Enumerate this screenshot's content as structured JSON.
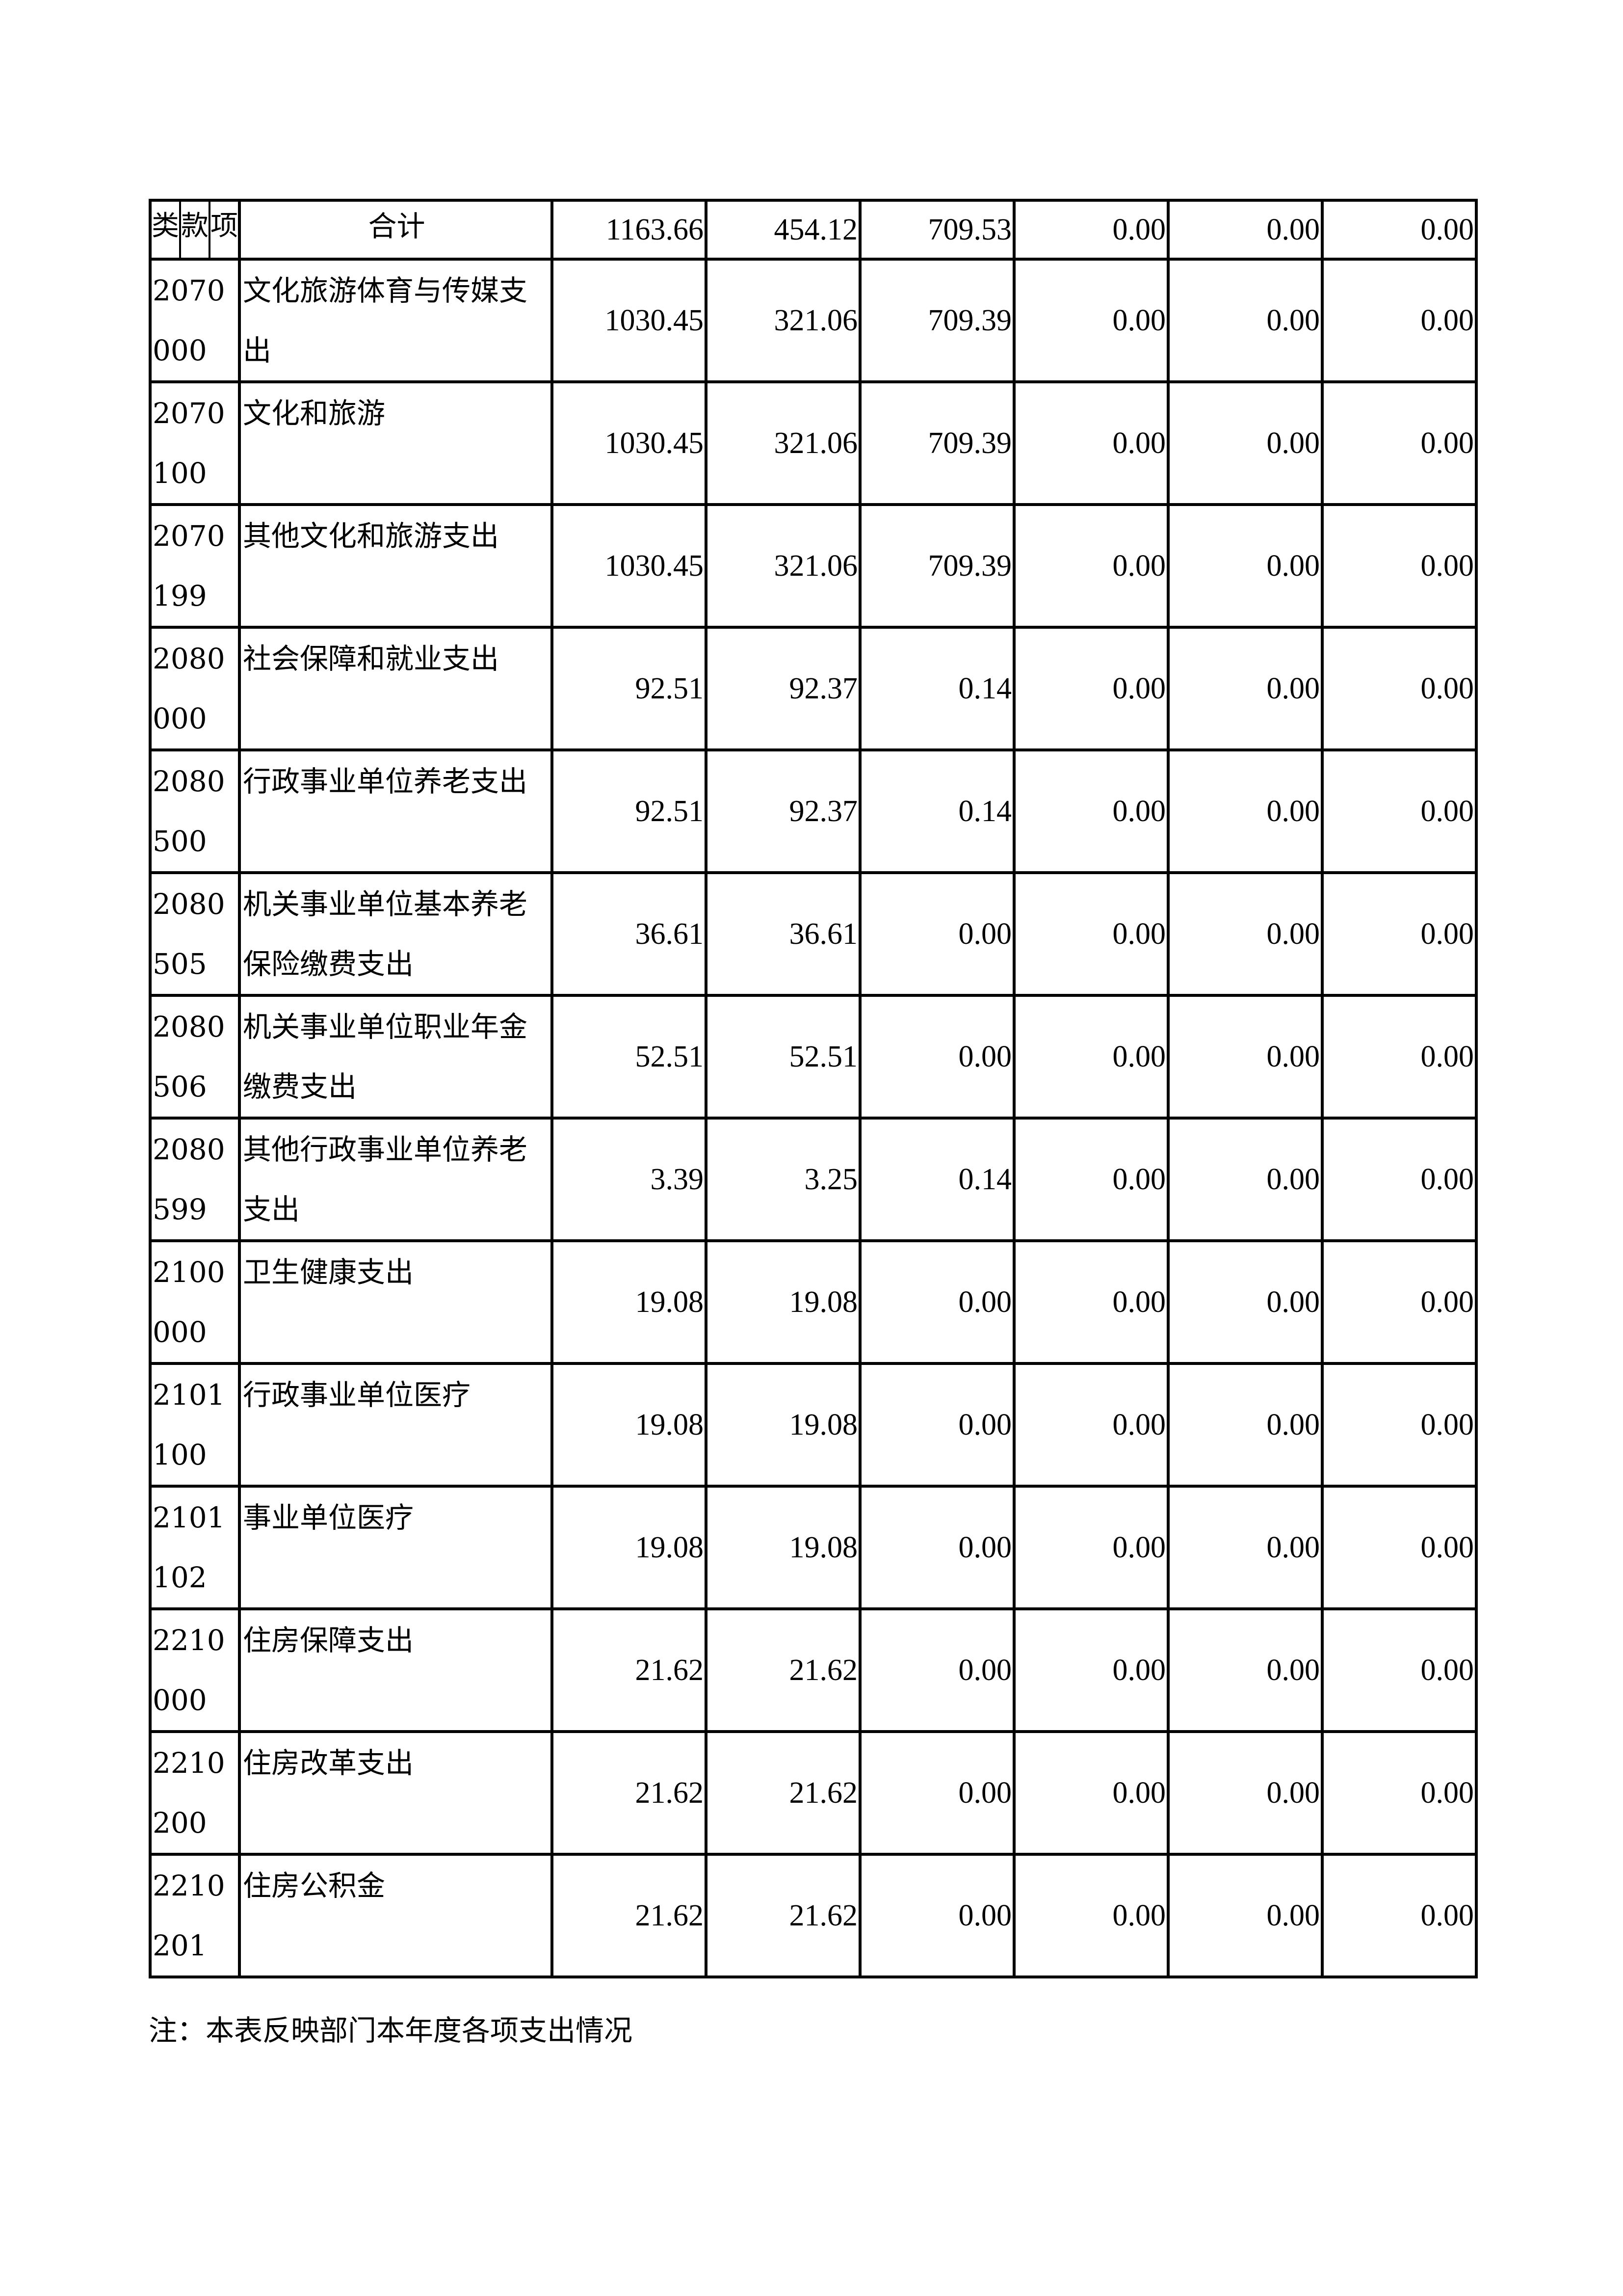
{
  "header": {
    "sub_labels": [
      "类",
      "款",
      "项"
    ],
    "total_label": "合计",
    "total_values": [
      "1163.66",
      "454.12",
      "709.53",
      "0.00",
      "0.00",
      "0.00"
    ]
  },
  "rows": [
    {
      "code": "2070000",
      "name": "文化旅游体育与传媒支出",
      "values": [
        "1030.45",
        "321.06",
        "709.39",
        "0.00",
        "0.00",
        "0.00"
      ]
    },
    {
      "code": "2070100",
      "name": "文化和旅游",
      "values": [
        "1030.45",
        "321.06",
        "709.39",
        "0.00",
        "0.00",
        "0.00"
      ]
    },
    {
      "code": "2070199",
      "name": "其他文化和旅游支出",
      "values": [
        "1030.45",
        "321.06",
        "709.39",
        "0.00",
        "0.00",
        "0.00"
      ]
    },
    {
      "code": "2080000",
      "name": "社会保障和就业支出",
      "values": [
        "92.51",
        "92.37",
        "0.14",
        "0.00",
        "0.00",
        "0.00"
      ]
    },
    {
      "code": "2080500",
      "name": "行政事业单位养老支出",
      "values": [
        "92.51",
        "92.37",
        "0.14",
        "0.00",
        "0.00",
        "0.00"
      ]
    },
    {
      "code": "2080505",
      "name": "机关事业单位基本养老保险缴费支出",
      "values": [
        "36.61",
        "36.61",
        "0.00",
        "0.00",
        "0.00",
        "0.00"
      ]
    },
    {
      "code": "2080506",
      "name": "机关事业单位职业年金缴费支出",
      "values": [
        "52.51",
        "52.51",
        "0.00",
        "0.00",
        "0.00",
        "0.00"
      ]
    },
    {
      "code": "2080599",
      "name": "其他行政事业单位养老支出",
      "values": [
        "3.39",
        "3.25",
        "0.14",
        "0.00",
        "0.00",
        "0.00"
      ]
    },
    {
      "code": "2100000",
      "name": "卫生健康支出",
      "values": [
        "19.08",
        "19.08",
        "0.00",
        "0.00",
        "0.00",
        "0.00"
      ]
    },
    {
      "code": "2101100",
      "name": "行政事业单位医疗",
      "values": [
        "19.08",
        "19.08",
        "0.00",
        "0.00",
        "0.00",
        "0.00"
      ]
    },
    {
      "code": "2101102",
      "name": "事业单位医疗",
      "values": [
        "19.08",
        "19.08",
        "0.00",
        "0.00",
        "0.00",
        "0.00"
      ]
    },
    {
      "code": "2210000",
      "name": "住房保障支出",
      "values": [
        "21.62",
        "21.62",
        "0.00",
        "0.00",
        "0.00",
        "0.00"
      ]
    },
    {
      "code": "2210200",
      "name": "住房改革支出",
      "values": [
        "21.62",
        "21.62",
        "0.00",
        "0.00",
        "0.00",
        "0.00"
      ]
    },
    {
      "code": "2210201",
      "name": "住房公积金",
      "values": [
        "21.62",
        "21.62",
        "0.00",
        "0.00",
        "0.00",
        "0.00"
      ]
    }
  ],
  "note": "注：本表反映部门本年度各项支出情况"
}
